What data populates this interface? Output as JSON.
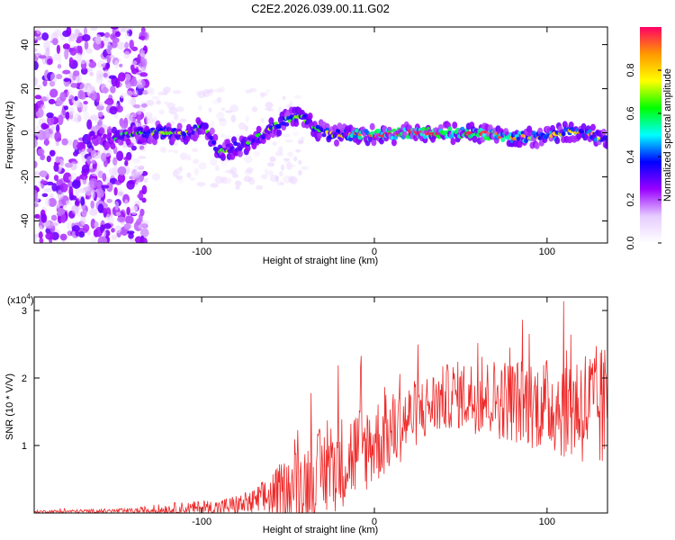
{
  "chart_data": [
    {
      "type": "heatmap",
      "title": "C2E2.2026.039.00.11.G02",
      "xlabel": "Height of straight line (km)",
      "ylabel": "Frequency (Hz)",
      "xlim": [
        -197,
        135
      ],
      "ylim": [
        -50,
        48
      ],
      "xticks": [
        -100,
        0,
        100
      ],
      "yticks": [
        -40,
        -20,
        0,
        20,
        40
      ],
      "colorbar": {
        "label": "Normalized spectral amplitude",
        "range": [
          0,
          1
        ],
        "ticks": [
          0.0,
          0.2,
          0.4,
          0.6,
          0.8
        ],
        "stops": [
          "#ffffff",
          "#e6ccff",
          "#9900ff",
          "#0000ff",
          "#00ffff",
          "#00ff00",
          "#ffff00",
          "#ff9900",
          "#ff0066"
        ]
      },
      "ridge": [
        {
          "x": -155,
          "f": -3,
          "amp": 0.35
        },
        {
          "x": -140,
          "f": 0,
          "amp": 0.45
        },
        {
          "x": -125,
          "f": 0,
          "amp": 0.5
        },
        {
          "x": -110,
          "f": -1,
          "amp": 0.5
        },
        {
          "x": -98,
          "f": 3,
          "amp": 0.45
        },
        {
          "x": -90,
          "f": -9,
          "amp": 0.45
        },
        {
          "x": -78,
          "f": -6,
          "amp": 0.5
        },
        {
          "x": -70,
          "f": -3,
          "amp": 0.45
        },
        {
          "x": -60,
          "f": 2,
          "amp": 0.5
        },
        {
          "x": -50,
          "f": 6,
          "amp": 0.5
        },
        {
          "x": -42,
          "f": 8,
          "amp": 0.45
        },
        {
          "x": -35,
          "f": 2,
          "amp": 0.45
        },
        {
          "x": -25,
          "f": -1,
          "amp": 0.55
        },
        {
          "x": -10,
          "f": -1,
          "amp": 0.7
        },
        {
          "x": 0,
          "f": -1,
          "amp": 0.8
        },
        {
          "x": 20,
          "f": 0,
          "amp": 0.8
        },
        {
          "x": 40,
          "f": 0,
          "amp": 0.8
        },
        {
          "x": 60,
          "f": 0,
          "amp": 0.8
        },
        {
          "x": 80,
          "f": -2,
          "amp": 0.7
        },
        {
          "x": 100,
          "f": -2,
          "amp": 0.6
        },
        {
          "x": 115,
          "f": 1,
          "amp": 0.6
        },
        {
          "x": 125,
          "f": 0,
          "amp": 0.6
        },
        {
          "x": 135,
          "f": -4,
          "amp": 0.5
        }
      ]
    },
    {
      "type": "line",
      "xlabel": "Height of straight line (km)",
      "ylabel": "SNR (10 * V/V)",
      "y_multiplier_label": "(x10",
      "y_multiplier_exp": "4",
      "y_multiplier_close": ")",
      "xlim": [
        -197,
        135
      ],
      "ylim": [
        0,
        3.2
      ],
      "xticks": [
        -100,
        0,
        100
      ],
      "yticks": [
        1,
        2,
        3
      ],
      "color": "#ee2a2a",
      "envelope": [
        {
          "x": -197,
          "base": 0.02,
          "spread": 0.02
        },
        {
          "x": -140,
          "base": 0.03,
          "spread": 0.04
        },
        {
          "x": -120,
          "base": 0.05,
          "spread": 0.1
        },
        {
          "x": -90,
          "base": 0.08,
          "spread": 0.12
        },
        {
          "x": -70,
          "base": 0.15,
          "spread": 0.2
        },
        {
          "x": -50,
          "base": 0.35,
          "spread": 0.5
        },
        {
          "x": -30,
          "base": 0.6,
          "spread": 0.7
        },
        {
          "x": -10,
          "base": 0.9,
          "spread": 0.7
        },
        {
          "x": 10,
          "base": 1.2,
          "spread": 0.6
        },
        {
          "x": 25,
          "base": 1.5,
          "spread": 0.5
        },
        {
          "x": 45,
          "base": 1.75,
          "spread": 0.5
        },
        {
          "x": 70,
          "base": 1.7,
          "spread": 0.6
        },
        {
          "x": 100,
          "base": 1.6,
          "spread": 0.7
        },
        {
          "x": 120,
          "base": 1.6,
          "spread": 0.9
        },
        {
          "x": 135,
          "base": 1.5,
          "spread": 1.0
        }
      ]
    }
  ]
}
